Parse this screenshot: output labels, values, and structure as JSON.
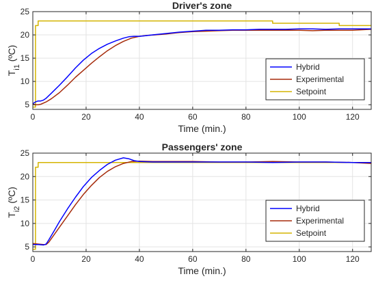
{
  "chart_data": [
    {
      "type": "line",
      "title": "Driver's zone",
      "xlabel": "Time (min.)",
      "ylabel_main": "T",
      "ylabel_sub": "i1",
      "ylabel_unit": " (ºC)",
      "xlim": [
        0,
        127
      ],
      "ylim": [
        4,
        25
      ],
      "xticks": [
        0,
        20,
        40,
        60,
        80,
        100,
        120
      ],
      "yticks": [
        5,
        10,
        15,
        20,
        25
      ],
      "grid": true,
      "legend_position": "bottom-right",
      "series": [
        {
          "name": "Hybrid",
          "color": "#0000ff",
          "points": [
            [
              0,
              5.2
            ],
            [
              1,
              5.6
            ],
            [
              2,
              5.8
            ],
            [
              3,
              5.8
            ],
            [
              4,
              6.0
            ],
            [
              5,
              6.4
            ],
            [
              7,
              7.5
            ],
            [
              10,
              9.2
            ],
            [
              13,
              11.0
            ],
            [
              16,
              12.9
            ],
            [
              19,
              14.6
            ],
            [
              22,
              16.0
            ],
            [
              25,
              17.1
            ],
            [
              28,
              18.0
            ],
            [
              31,
              18.7
            ],
            [
              34,
              19.3
            ],
            [
              36,
              19.6
            ],
            [
              38,
              19.7
            ],
            [
              40,
              19.7
            ],
            [
              42,
              19.8
            ],
            [
              45,
              20.0
            ],
            [
              50,
              20.3
            ],
            [
              55,
              20.6
            ],
            [
              60,
              20.8
            ],
            [
              65,
              21.0
            ],
            [
              70,
              21.0
            ],
            [
              75,
              21.1
            ],
            [
              80,
              21.1
            ],
            [
              85,
              21.2
            ],
            [
              90,
              21.2
            ],
            [
              95,
              21.2
            ],
            [
              100,
              21.3
            ],
            [
              105,
              21.3
            ],
            [
              110,
              21.2
            ],
            [
              115,
              21.3
            ],
            [
              120,
              21.3
            ],
            [
              127,
              21.3
            ]
          ]
        },
        {
          "name": "Experimental",
          "color": "#a52a0a",
          "points": [
            [
              0,
              5.1
            ],
            [
              1,
              5.0
            ],
            [
              2,
              5.0
            ],
            [
              3,
              5.1
            ],
            [
              5,
              5.6
            ],
            [
              7,
              6.3
            ],
            [
              10,
              7.6
            ],
            [
              13,
              9.2
            ],
            [
              16,
              10.9
            ],
            [
              19,
              12.4
            ],
            [
              22,
              13.9
            ],
            [
              25,
              15.3
            ],
            [
              28,
              16.6
            ],
            [
              31,
              17.7
            ],
            [
              34,
              18.6
            ],
            [
              37,
              19.3
            ],
            [
              40,
              19.7
            ],
            [
              43,
              19.9
            ],
            [
              46,
              20.0
            ],
            [
              50,
              20.2
            ],
            [
              55,
              20.5
            ],
            [
              60,
              20.7
            ],
            [
              65,
              20.8
            ],
            [
              70,
              20.9
            ],
            [
              75,
              21.0
            ],
            [
              80,
              21.0
            ],
            [
              85,
              21.0
            ],
            [
              90,
              21.0
            ],
            [
              95,
              21.0
            ],
            [
              100,
              21.0
            ],
            [
              105,
              20.9
            ],
            [
              110,
              21.0
            ],
            [
              115,
              21.0
            ],
            [
              120,
              21.0
            ],
            [
              127,
              21.2
            ]
          ]
        },
        {
          "name": "Setpoint",
          "color": "#d4b400",
          "points": [
            [
              0,
              4.5
            ],
            [
              1,
              4.5
            ],
            [
              1,
              22.0
            ],
            [
              2,
              22.0
            ],
            [
              2,
              23.0
            ],
            [
              90,
              23.0
            ],
            [
              90,
              22.5
            ],
            [
              115,
              22.5
            ],
            [
              115,
              22.0
            ],
            [
              127,
              22.0
            ]
          ]
        }
      ]
    },
    {
      "type": "line",
      "title": "Passengers' zone",
      "xlabel": "Time (min.)",
      "ylabel_main": "T",
      "ylabel_sub": "i2",
      "ylabel_unit": " (ºC)",
      "xlim": [
        0,
        127
      ],
      "ylim": [
        4,
        25
      ],
      "xticks": [
        0,
        20,
        40,
        60,
        80,
        100,
        120
      ],
      "yticks": [
        5,
        10,
        15,
        20,
        25
      ],
      "grid": true,
      "legend_position": "bottom-right",
      "series": [
        {
          "name": "Hybrid",
          "color": "#0000ff",
          "points": [
            [
              0,
              5.5
            ],
            [
              2,
              5.5
            ],
            [
              4,
              5.4
            ],
            [
              5,
              5.6
            ],
            [
              6,
              6.5
            ],
            [
              8,
              8.4
            ],
            [
              10,
              10.4
            ],
            [
              13,
              13.1
            ],
            [
              16,
              15.6
            ],
            [
              19,
              17.9
            ],
            [
              22,
              19.8
            ],
            [
              25,
              21.3
            ],
            [
              28,
              22.6
            ],
            [
              31,
              23.5
            ],
            [
              34,
              24.0
            ],
            [
              36,
              23.8
            ],
            [
              38,
              23.4
            ],
            [
              40,
              23.2
            ],
            [
              45,
              23.1
            ],
            [
              50,
              23.1
            ],
            [
              60,
              23.1
            ],
            [
              70,
              23.1
            ],
            [
              80,
              23.1
            ],
            [
              90,
              23.0
            ],
            [
              100,
              23.1
            ],
            [
              110,
              23.1
            ],
            [
              120,
              23.0
            ],
            [
              127,
              23.0
            ]
          ]
        },
        {
          "name": "Experimental",
          "color": "#a52a0a",
          "points": [
            [
              0,
              5.7
            ],
            [
              2,
              5.6
            ],
            [
              4,
              5.5
            ],
            [
              5,
              5.5
            ],
            [
              6,
              6.0
            ],
            [
              8,
              7.6
            ],
            [
              10,
              9.2
            ],
            [
              13,
              11.6
            ],
            [
              16,
              14.0
            ],
            [
              19,
              16.2
            ],
            [
              22,
              18.1
            ],
            [
              25,
              19.8
            ],
            [
              28,
              21.1
            ],
            [
              31,
              22.1
            ],
            [
              34,
              22.8
            ],
            [
              37,
              23.2
            ],
            [
              40,
              23.3
            ],
            [
              45,
              23.2
            ],
            [
              50,
              23.2
            ],
            [
              60,
              23.2
            ],
            [
              70,
              23.1
            ],
            [
              80,
              23.1
            ],
            [
              90,
              23.2
            ],
            [
              100,
              23.1
            ],
            [
              110,
              23.1
            ],
            [
              120,
              23.0
            ],
            [
              127,
              22.8
            ]
          ]
        },
        {
          "name": "Setpoint",
          "color": "#d4b400",
          "points": [
            [
              0,
              4.5
            ],
            [
              1,
              4.5
            ],
            [
              1,
              22.0
            ],
            [
              2,
              22.0
            ],
            [
              2,
              23.0
            ],
            [
              127,
              23.0
            ]
          ]
        }
      ]
    }
  ]
}
